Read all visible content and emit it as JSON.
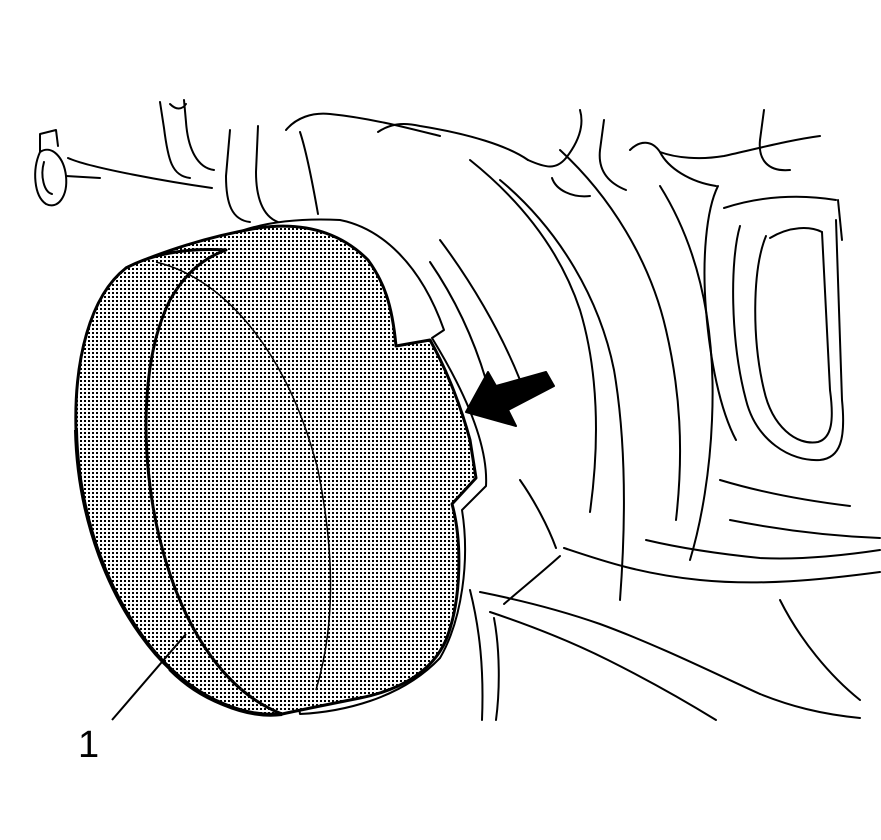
{
  "figure": {
    "callouts": [
      {
        "number": "1",
        "target": "component-cap"
      }
    ],
    "indicator_arrow": {
      "present": true
    },
    "colors": {
      "line": "#000000",
      "background": "#ffffff",
      "screen_dot": "#000000"
    }
  }
}
